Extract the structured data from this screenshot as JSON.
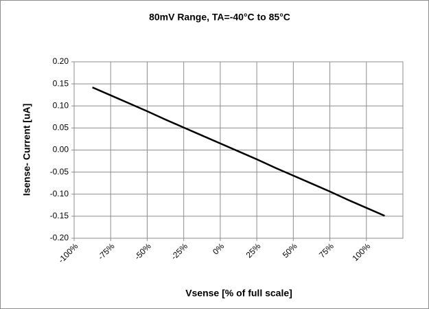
{
  "chart_data": {
    "type": "line",
    "title": "80mV Range, TA=-40°C to 85°C",
    "x_label": "Vsense [% of full scale]",
    "y_label": "Isense- Current [uA]",
    "x": [
      -87.5,
      -75,
      -62.5,
      -50,
      -37.5,
      -25,
      -12.5,
      0,
      12.5,
      25,
      37.5,
      50,
      62.5,
      75,
      87.5,
      100,
      112.5
    ],
    "series": [
      {
        "name": "Isense",
        "color": "#000000",
        "values": [
          0.142,
          0.124,
          0.106,
          0.088,
          0.069,
          0.051,
          0.033,
          0.015,
          -0.003,
          -0.021,
          -0.04,
          -0.058,
          -0.076,
          -0.094,
          -0.113,
          -0.131,
          -0.149
        ]
      }
    ],
    "xlim": [
      -100,
      125
    ],
    "xticks": [
      {
        "value": -100,
        "label": "-100%"
      },
      {
        "value": -75,
        "label": "-75%"
      },
      {
        "value": -50,
        "label": "-50%"
      },
      {
        "value": -25,
        "label": "-25%"
      },
      {
        "value": 0,
        "label": "0%"
      },
      {
        "value": 25,
        "label": "25%"
      },
      {
        "value": 50,
        "label": "50%"
      },
      {
        "value": 75,
        "label": "75%"
      },
      {
        "value": 100,
        "label": "100%"
      }
    ],
    "ylim": [
      -0.2,
      0.2
    ],
    "yticks": [
      {
        "value": -0.2,
        "label": "-0.20"
      },
      {
        "value": -0.15,
        "label": "-0.15"
      },
      {
        "value": -0.1,
        "label": "-0.10"
      },
      {
        "value": -0.05,
        "label": "-0.05"
      },
      {
        "value": 0,
        "label": "0.00"
      },
      {
        "value": 0.05,
        "label": "0.05"
      },
      {
        "value": 0.1,
        "label": "0.10"
      },
      {
        "value": 0.15,
        "label": "0.15"
      },
      {
        "value": 0.2,
        "label": "0.20"
      }
    ],
    "grid": true
  }
}
